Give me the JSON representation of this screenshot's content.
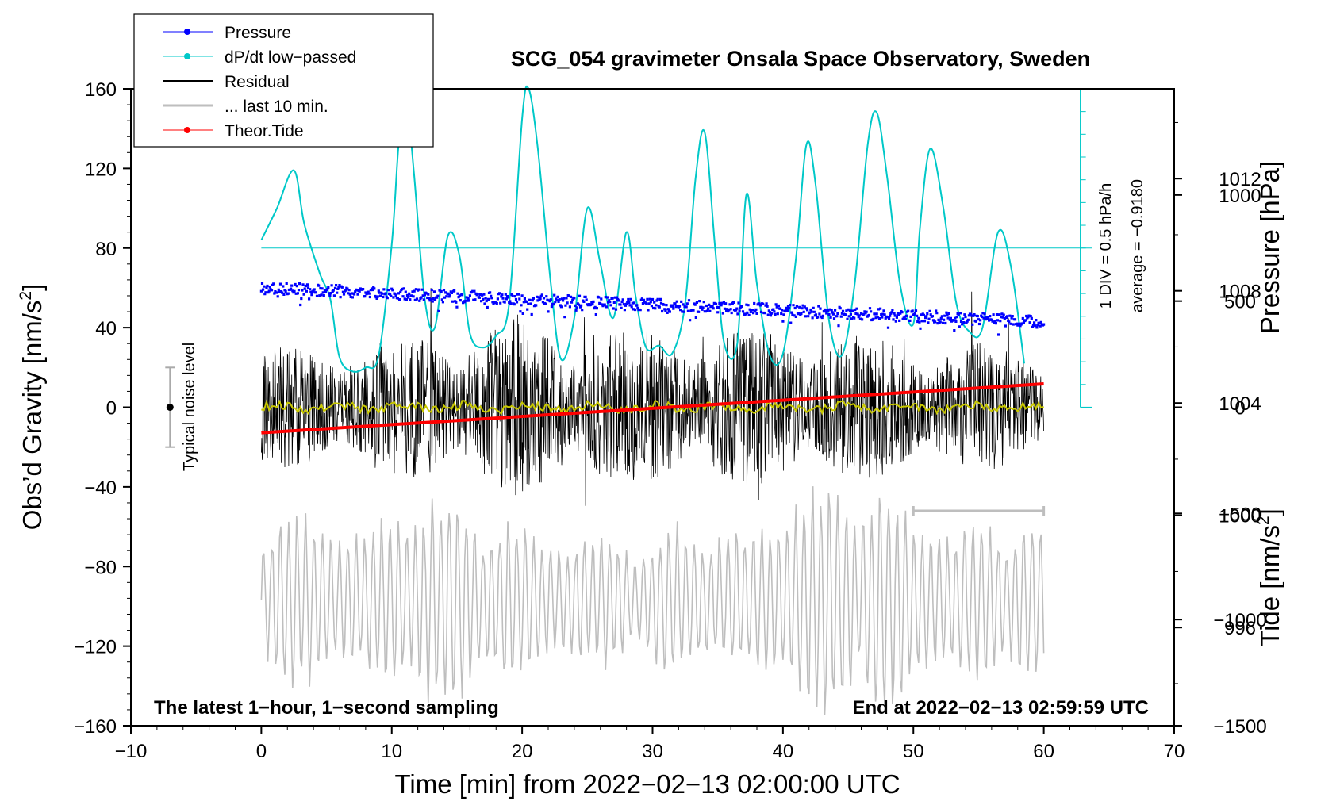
{
  "chart_data": {
    "type": "line",
    "title": "SCG_054 gravimeter Onsala Space Observatory, Sweden",
    "xlabel": "Time [min] from 2022−02−13 02:00:00 UTC",
    "ylabel_left": "Obs’d Gravity [nm/s",
    "ylabel_left_sup": "2",
    "ylabel_left_close": "]",
    "ylabel_pressure": "Pressure [hPa]",
    "ylabel_tide": "Tide [nm/s",
    "ylabel_tide_sup": "2",
    "ylabel_tide_close": "]",
    "xlim": [
      -10,
      70
    ],
    "ylim": [
      -160,
      160
    ],
    "x_ticks": [
      {
        "v": -10,
        "label": "−10"
      },
      {
        "v": 0,
        "label": "0"
      },
      {
        "v": 10,
        "label": "10"
      },
      {
        "v": 20,
        "label": "20"
      },
      {
        "v": 30,
        "label": "30"
      },
      {
        "v": 40,
        "label": "40"
      },
      {
        "v": 50,
        "label": "50"
      },
      {
        "v": 60,
        "label": "60"
      },
      {
        "v": 70,
        "label": "70"
      }
    ],
    "y_ticks": [
      {
        "v": 160,
        "label": "160"
      },
      {
        "v": 120,
        "label": "120"
      },
      {
        "v": 80,
        "label": "80"
      },
      {
        "v": 40,
        "label": "40"
      },
      {
        "v": 0,
        "label": "0"
      },
      {
        "v": -40,
        "label": "−40"
      },
      {
        "v": -80,
        "label": "−80"
      },
      {
        "v": -120,
        "label": "−120"
      },
      {
        "v": -160,
        "label": "−160"
      }
    ],
    "pressure_axis": {
      "range_hPa": [
        992.5,
        1015.2
      ],
      "ticks": [
        {
          "v": 1012,
          "label": "1012"
        },
        {
          "v": 1008,
          "label": "1008"
        },
        {
          "v": 1004,
          "label": "1004"
        },
        {
          "v": 1000,
          "label": "1000"
        },
        {
          "v": 996,
          "label": "996"
        }
      ]
    },
    "tide_axis": {
      "range": [
        -1500,
        1500
      ],
      "ticks": [
        {
          "v": 1000,
          "label": "1000"
        },
        {
          "v": 500,
          "label": "500"
        },
        {
          "v": 0,
          "label": "0"
        },
        {
          "v": -500,
          "label": "−500"
        },
        {
          "v": -1000,
          "label": "−1000"
        },
        {
          "v": -1500,
          "label": "−1500"
        }
      ]
    },
    "ddt_scale": {
      "div_label": "1 DIV = 0.5 hPa/h",
      "average_label": "average = −0.9180",
      "zero_at_gravity": 0,
      "reference_line_at_gravity": 80
    },
    "series": [
      {
        "name": "Pressure",
        "color": "#0000ff",
        "axis": "pressure",
        "x": [
          0,
          5,
          10,
          15,
          20,
          25,
          30,
          35,
          40,
          45,
          50,
          55,
          60
        ],
        "values": [
          1008.1,
          1008.0,
          1007.9,
          1007.8,
          1007.7,
          1007.6,
          1007.5,
          1007.4,
          1007.3,
          1007.2,
          1007.1,
          1007.0,
          1006.9
        ]
      },
      {
        "name": "dP/dt low−passed",
        "color": "#00c8c8",
        "axis": "gravity",
        "x": [
          0,
          1.2,
          2.5,
          3.3,
          4.5,
          5.3,
          6.0,
          7.0,
          8.0,
          9.0,
          10.0,
          10.5,
          11.0,
          11.7,
          12.5,
          13.3,
          14.3,
          15.2,
          16.0,
          17.0,
          18.0,
          19.0,
          20.0,
          20.5,
          21.2,
          22.2,
          23.0,
          24.0,
          25.0,
          26.0,
          27.0,
          28.0,
          28.7,
          29.5,
          30.5,
          31.5,
          32.5,
          33.3,
          34.0,
          34.8,
          35.5,
          36.5,
          37.2,
          38.0,
          39.0,
          40.0,
          41.0,
          41.8,
          42.5,
          43.5,
          44.5,
          45.5,
          46.5,
          47.2,
          48.0,
          49.0,
          50.0,
          50.5,
          51.3,
          52.3,
          53.3,
          54.3,
          55.3,
          56.5,
          57.5,
          58.5
        ],
        "values": [
          84,
          100,
          119,
          92,
          67,
          54,
          25,
          18,
          20,
          26,
          82,
          130,
          162,
          118,
          56,
          40,
          86,
          76,
          37,
          30,
          36,
          52,
          145,
          160,
          130,
          62,
          24,
          45,
          100,
          72,
          45,
          88,
          56,
          30,
          31,
          27,
          52,
          115,
          138,
          80,
          32,
          32,
          107,
          62,
          26,
          27,
          75,
          132,
          112,
          45,
          26,
          62,
          132,
          148,
          115,
          61,
          42,
          90,
          130,
          100,
          52,
          38,
          40,
          88,
          70,
          22
        ]
      },
      {
        "name": "Residual",
        "color": "#000000",
        "axis": "gravity",
        "x": [
          0,
          10,
          20,
          30,
          40,
          50,
          60
        ],
        "values": [
          0,
          0,
          0,
          0,
          0,
          0,
          0
        ],
        "envelope": [
          30,
          35,
          45,
          40,
          40,
          35,
          30
        ]
      },
      {
        "name": "... last 10 min.",
        "color": "#bebebe",
        "axis": "gravity",
        "x": [
          0,
          10,
          20,
          30,
          40,
          50,
          60
        ],
        "values": [
          -97,
          -97,
          -97,
          -97,
          -97,
          -97,
          -97
        ],
        "envelope": [
          40,
          55,
          45,
          30,
          60,
          55,
          40
        ]
      },
      {
        "name": "Theor.Tide",
        "color": "#ff0000",
        "axis": "tide",
        "x": [
          0,
          60
        ],
        "values": [
          -120,
          110
        ]
      }
    ],
    "noise_bar": {
      "label": "Typical noise level",
      "x": -7,
      "center": 0,
      "half_range": 20
    },
    "last10_bracket_minutes": [
      50,
      60
    ],
    "legend": {
      "placement": "top-left",
      "entries": [
        "Pressure",
        "dP/dt low−passed",
        "Residual",
        "... last 10 min.",
        "Theor.Tide"
      ]
    }
  },
  "annotations": {
    "latest": "The latest 1−hour, 1−second sampling",
    "end": "End at 2022−02−13 02:59:59 UTC"
  }
}
